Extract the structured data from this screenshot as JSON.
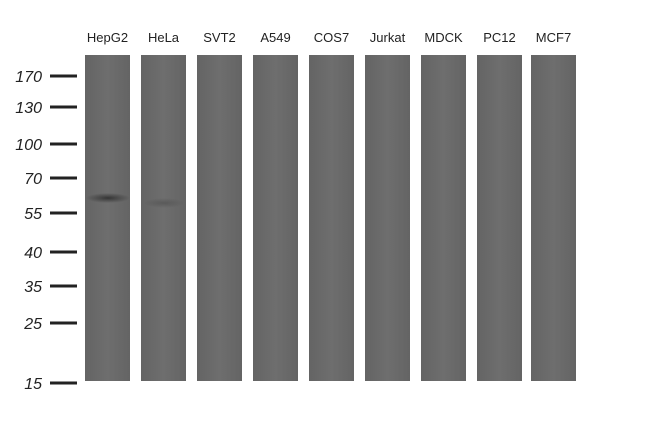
{
  "lanes": [
    "HepG2",
    "HeLa",
    "SVT2",
    "A549",
    "COS7",
    "Jurkat",
    "MDCK",
    "PC12",
    "MCF7"
  ],
  "markers": [
    170,
    130,
    100,
    70,
    55,
    40,
    35,
    25,
    15
  ]
}
